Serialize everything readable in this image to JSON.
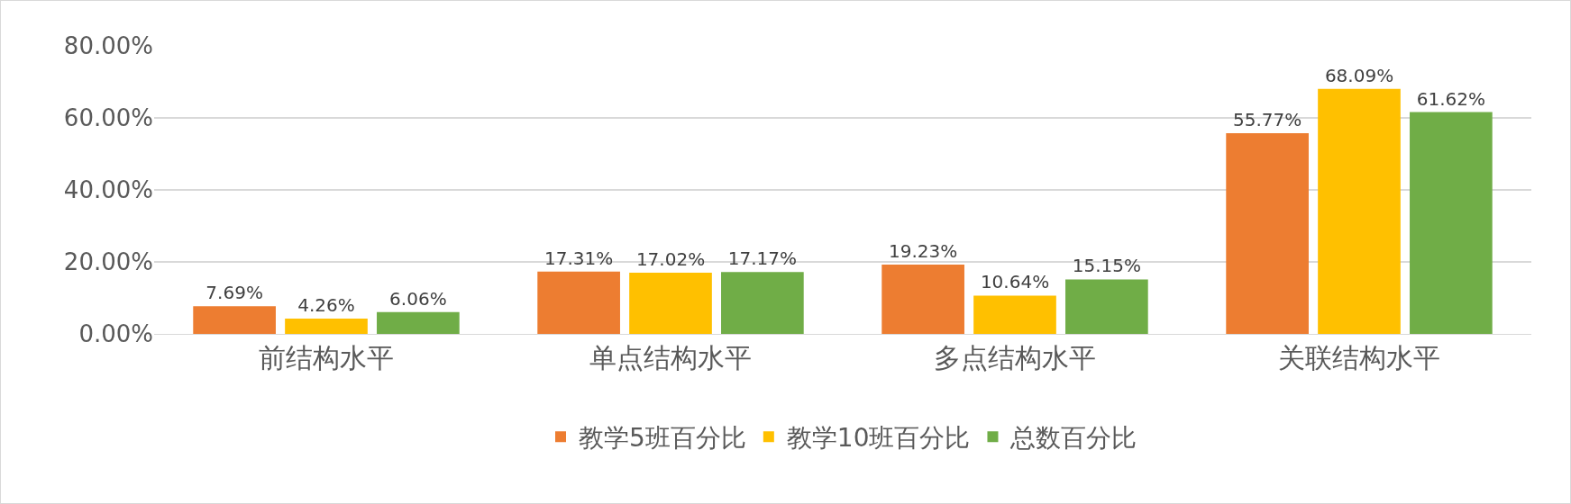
{
  "chart_data": {
    "type": "bar",
    "categories": [
      "前结构水平",
      "单点结构水平",
      "多点结构水平",
      "关联结构水平"
    ],
    "series": [
      {
        "name": "教学5班百分比",
        "color": "#ed7d31",
        "values": [
          7.69,
          17.31,
          19.23,
          55.77
        ],
        "value_labels": [
          "7.69%",
          "17.31%",
          "19.23%",
          "55.77%"
        ]
      },
      {
        "name": "教学10班百分比",
        "color": "#ffc000",
        "values": [
          4.26,
          17.02,
          10.64,
          68.09
        ],
        "value_labels": [
          "4.26%",
          "17.02%",
          "10.64%",
          "68.09%"
        ]
      },
      {
        "name": "总数百分比",
        "color": "#70ad47",
        "values": [
          6.06,
          17.17,
          15.15,
          61.62
        ],
        "value_labels": [
          "6.06%",
          "17.17%",
          "15.15%",
          "61.62%"
        ]
      }
    ],
    "ylim": [
      0,
      80
    ],
    "yticks": [
      {
        "value": 0,
        "label": "0.00%"
      },
      {
        "value": 20,
        "label": "20.00%"
      },
      {
        "value": 40,
        "label": "40.00%"
      },
      {
        "value": 60,
        "label": "60.00%"
      },
      {
        "value": 80,
        "label": "80.00%"
      }
    ],
    "grid": "y",
    "legend": "bottom"
  }
}
